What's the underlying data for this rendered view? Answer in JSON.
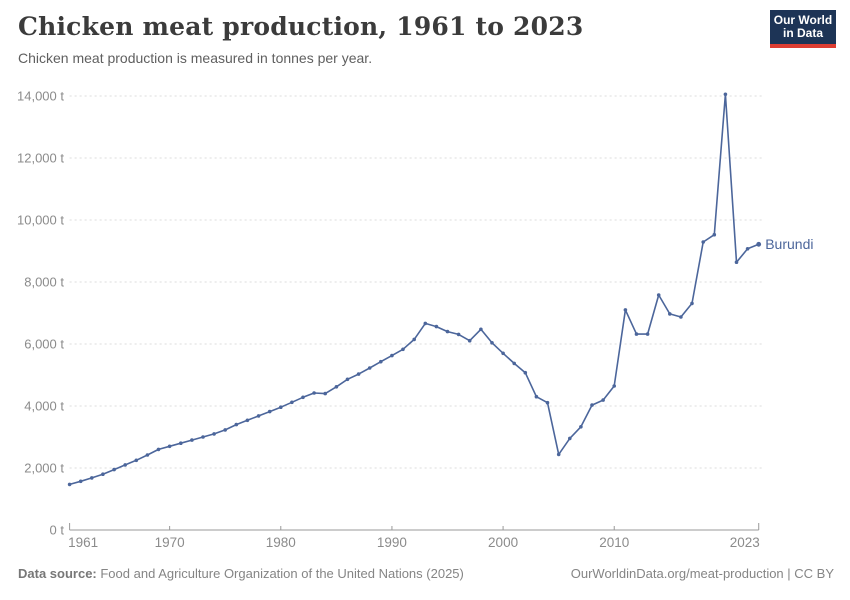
{
  "header": {
    "title": "Chicken meat production, 1961 to 2023",
    "subtitle": "Chicken meat production is measured in tonnes per year."
  },
  "logo": {
    "line1": "Our World",
    "line2": "in Data"
  },
  "footer": {
    "source_label": "Data source:",
    "source_text": " Food and Agriculture Organization of the United Nations (2025)",
    "credit": "OurWorldinData.org/meat-production | CC BY"
  },
  "colors": {
    "line": "#4c669b",
    "axis_text": "#8b8b8b",
    "axis_line": "#999999",
    "grid": "#dcdcdc",
    "logo_bg": "#1d3456",
    "logo_red": "#dd3d32"
  },
  "chart_data": {
    "type": "line",
    "title": "Chicken meat production, 1961 to 2023",
    "entity": "Burundi",
    "unit": "t",
    "xlabel": "",
    "ylabel": "tonnes per year",
    "xlim": [
      1961,
      2023
    ],
    "ylim": [
      0,
      14000
    ],
    "grid": "horizontal-dashed",
    "legend_position": "line-end-label",
    "xtick_values": [
      1961,
      1970,
      1980,
      1990,
      2000,
      2010,
      2023
    ],
    "xtick_labels": [
      "1961",
      "1970",
      "1980",
      "1990",
      "2000",
      "2010",
      "2023"
    ],
    "ytick_values": [
      0,
      2000,
      4000,
      6000,
      8000,
      10000,
      12000,
      14000
    ],
    "ytick_labels": [
      "0 t",
      "2,000 t",
      "4,000 t",
      "6,000 t",
      "8,000 t",
      "10,000 t",
      "12,000 t",
      "14,000 t"
    ],
    "x": [
      1961,
      1962,
      1963,
      1964,
      1965,
      1966,
      1967,
      1968,
      1969,
      1970,
      1971,
      1972,
      1973,
      1974,
      1975,
      1976,
      1977,
      1978,
      1979,
      1980,
      1981,
      1982,
      1983,
      1984,
      1985,
      1986,
      1987,
      1988,
      1989,
      1990,
      1991,
      1992,
      1993,
      1994,
      1995,
      1996,
      1997,
      1998,
      1999,
      2000,
      2001,
      2002,
      2003,
      2004,
      2005,
      2006,
      2007,
      2008,
      2009,
      2010,
      2011,
      2012,
      2013,
      2014,
      2015,
      2016,
      2017,
      2018,
      2019,
      2020,
      2021,
      2022,
      2023
    ],
    "values": [
      1470,
      1570,
      1680,
      1800,
      1950,
      2100,
      2250,
      2420,
      2600,
      2700,
      2800,
      2900,
      3000,
      3100,
      3230,
      3400,
      3540,
      3680,
      3820,
      3960,
      4120,
      4280,
      4420,
      4400,
      4620,
      4860,
      5030,
      5225,
      5430,
      5625,
      5830,
      6150,
      6665,
      6560,
      6400,
      6310,
      6105,
      6475,
      6040,
      5700,
      5375,
      5075,
      4300,
      4105,
      2440,
      2955,
      3330,
      4030,
      4190,
      4645,
      7100,
      6320,
      6320,
      7580,
      6970,
      6870,
      7310,
      9290,
      9525,
      14055,
      8640,
      9070,
      9215
    ]
  }
}
